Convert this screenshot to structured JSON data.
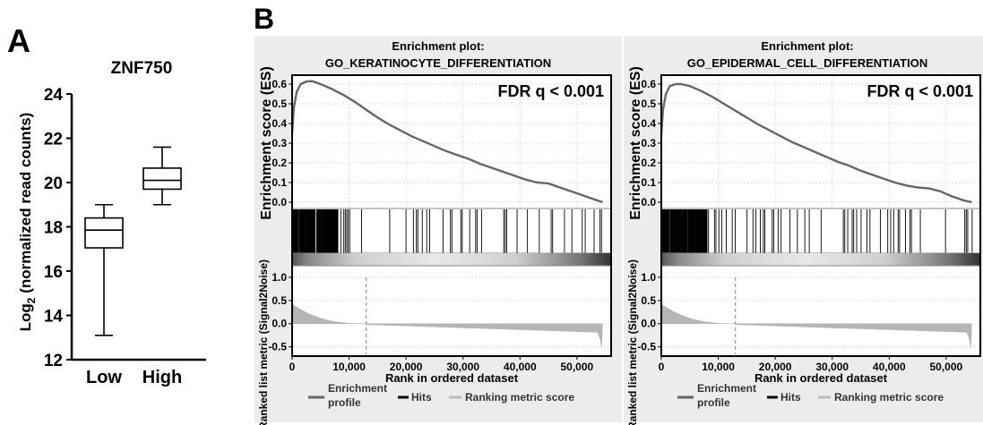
{
  "panels": {
    "a_label": "A",
    "b_label": "B"
  },
  "chart_data": [
    {
      "type": "box",
      "title": "ZNF750",
      "ylabel": "Log2 (normalized read counts)",
      "ylabel_base": "Log",
      "ylabel_sub": "2",
      "ylabel_rest": " (normalized read counts)",
      "ylim": [
        12,
        24
      ],
      "yticks": [
        12,
        14,
        16,
        18,
        20,
        22,
        24
      ],
      "categories": [
        "Low",
        "High"
      ],
      "boxes": [
        {
          "category": "Low",
          "min": 13.1,
          "q1": 17.05,
          "median": 17.85,
          "q3": 18.4,
          "max": 19.0
        },
        {
          "category": "High",
          "min": 19.0,
          "q1": 19.7,
          "median": 20.1,
          "q3": 20.65,
          "max": 21.6
        }
      ]
    },
    {
      "type": "line",
      "title_line1": "Enrichment plot:",
      "title_line2": "GO_KERATINOCYTE_DIFFERENTIATION",
      "annotation": "FDR q < 0.001",
      "ylabel_top": "Enrichment score (ES)",
      "ylabel_bottom": "Ranked list metric (Signal2Noise)",
      "xlabel": "Rank in ordered dataset",
      "xlim": [
        0,
        56000
      ],
      "xticks": [
        0,
        10000,
        20000,
        30000,
        40000,
        50000
      ],
      "xtick_labels": [
        "0",
        "10,000",
        "20,000",
        "30,000",
        "40,000",
        "50,000"
      ],
      "es_ylim": [
        0,
        0.63
      ],
      "es_yticks": [
        "0.0",
        "0.1",
        "0.2",
        "0.3",
        "0.4",
        "0.5",
        "0.6"
      ],
      "es_curve": {
        "x": [
          0,
          300,
          800,
          1500,
          2500,
          3500,
          5000,
          7000,
          9000,
          11000,
          13000,
          15000,
          17000,
          19000,
          21000,
          23000,
          25000,
          27000,
          29000,
          31000,
          33000,
          35000,
          37000,
          39000,
          41000,
          43000,
          45000,
          47000,
          49000,
          51000,
          53000,
          54500
        ],
        "y": [
          0.35,
          0.48,
          0.56,
          0.6,
          0.613,
          0.615,
          0.6,
          0.575,
          0.545,
          0.51,
          0.47,
          0.43,
          0.395,
          0.365,
          0.335,
          0.31,
          0.285,
          0.26,
          0.24,
          0.22,
          0.195,
          0.175,
          0.155,
          0.135,
          0.115,
          0.1,
          0.095,
          0.075,
          0.055,
          0.035,
          0.015,
          0.0
        ]
      },
      "metric_ylim": [
        -0.7,
        1.25
      ],
      "metric_yticks": [
        "-0.5",
        "0.0",
        "0.5",
        "1.0"
      ],
      "zero_cross": 13000,
      "legend": [
        "Enrichment profile",
        "Hits",
        "Ranking metric score"
      ],
      "legend_line1": "Enrichment",
      "legend_line2": "profile"
    },
    {
      "type": "line",
      "title_line1": "Enrichment plot:",
      "title_line2": "GO_EPIDERMAL_CELL_DIFFERENTIATION",
      "annotation": "FDR q < 0.001",
      "ylabel_top": "Enrichment score (ES)",
      "ylabel_bottom": "Ranked list metric (Signal2Noise)",
      "xlabel": "Rank in ordered dataset",
      "xlim": [
        0,
        56000
      ],
      "xticks": [
        0,
        10000,
        20000,
        30000,
        40000,
        50000
      ],
      "xtick_labels": [
        "0",
        "10,000",
        "20,000",
        "30,000",
        "40,000",
        "50,000"
      ],
      "es_ylim": [
        0,
        0.63
      ],
      "es_yticks": [
        "0.0",
        "0.1",
        "0.2",
        "0.3",
        "0.4",
        "0.5",
        "0.6"
      ],
      "es_curve": {
        "x": [
          0,
          300,
          800,
          1500,
          2500,
          3500,
          5000,
          7000,
          9000,
          11000,
          13000,
          15000,
          17000,
          19000,
          21000,
          23000,
          25000,
          27000,
          29000,
          31000,
          33000,
          35000,
          37000,
          39000,
          41000,
          43000,
          45000,
          47000,
          49000,
          51000,
          53000,
          54500
        ],
        "y": [
          0.34,
          0.47,
          0.55,
          0.59,
          0.6,
          0.6,
          0.59,
          0.565,
          0.535,
          0.5,
          0.465,
          0.43,
          0.395,
          0.365,
          0.335,
          0.305,
          0.28,
          0.255,
          0.23,
          0.205,
          0.185,
          0.16,
          0.14,
          0.12,
          0.1,
          0.085,
          0.075,
          0.07,
          0.055,
          0.03,
          0.01,
          0.0
        ]
      },
      "metric_ylim": [
        -0.7,
        1.25
      ],
      "metric_yticks": [
        "-0.5",
        "0.0",
        "0.5",
        "1.0"
      ],
      "zero_cross": 13000,
      "legend": [
        "Enrichment profile",
        "Hits",
        "Ranking metric score"
      ],
      "legend_line1": "Enrichment",
      "legend_line2": "profile"
    }
  ]
}
